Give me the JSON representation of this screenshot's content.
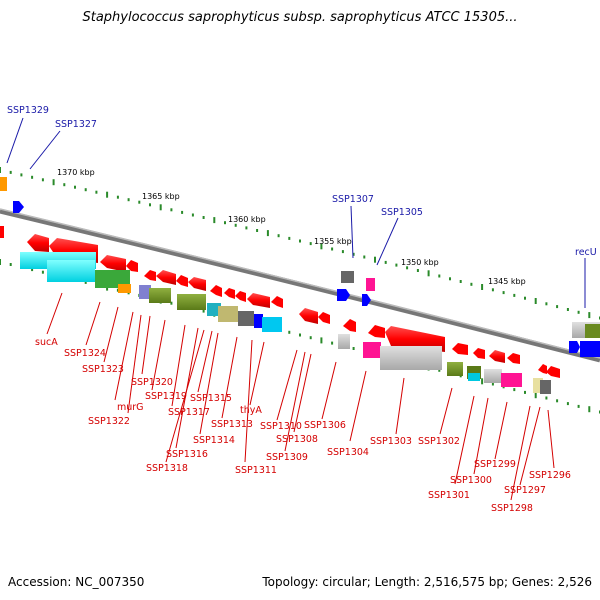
{
  "title": "Staphylococcus saprophyticus subsp. saprophyticus ATCC 15305...",
  "footer": {
    "accession": "Accession: NC_007350",
    "topology": "Topology: circular; Length: 2,516,575 bp; Genes: 2,526"
  },
  "scale_labels": [
    "1370 kbp",
    "1365 kbp",
    "1360 kbp",
    "1355 kbp",
    "1350 kbp",
    "1345 kbp"
  ],
  "top_labels": [
    "SSP1329",
    "SSP1327",
    "SSP1307",
    "SSP1305",
    "recU"
  ],
  "bottom_labels": [
    "sucA",
    "SSP1324",
    "SSP1323",
    "SSP1320",
    "murG",
    "SSP1322",
    "SSP1319",
    "SSP1317",
    "SSP1315",
    "SSP1316",
    "SSP1318",
    "SSP1314",
    "SSP1313",
    "thyA",
    "SSP1311",
    "SSP1310",
    "SSP1308",
    "SSP1309",
    "SSP1306",
    "SSP1304",
    "SSP1303",
    "SSP1302",
    "SSP1301",
    "SSP1300",
    "SSP1299",
    "SSP1298",
    "SSP1297",
    "SSP1296"
  ],
  "colors": {
    "gene": "#ff0000",
    "forward": "#0000ff",
    "backbone": "#808080",
    "tick": "#2a8a2a",
    "label_red": "#d40000",
    "label_blue": "#1a1aa8"
  }
}
